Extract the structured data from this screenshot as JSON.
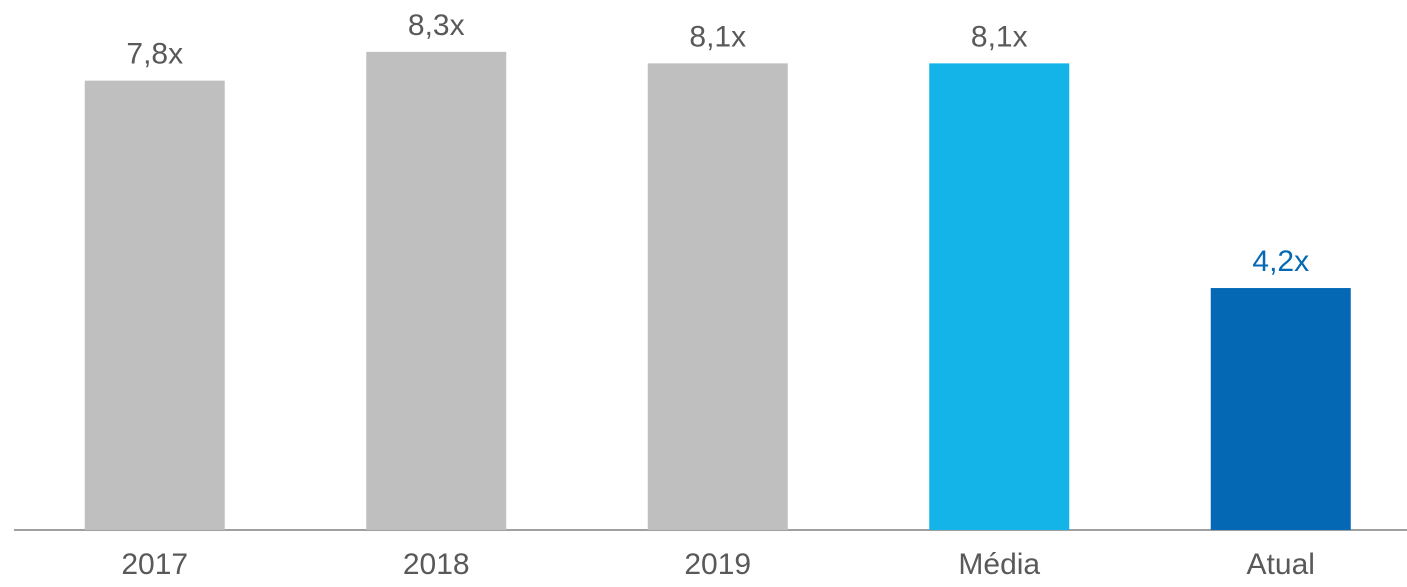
{
  "chart_data": {
    "type": "bar",
    "categories": [
      "2017",
      "2018",
      "2019",
      "Média",
      "Atual"
    ],
    "values": [
      7.8,
      8.3,
      8.1,
      8.1,
      4.2
    ],
    "value_labels": [
      "7,8x",
      "8,3x",
      "8,1x",
      "8,1x",
      "4,2x"
    ],
    "colors": [
      "#bfbfbf",
      "#bfbfbf",
      "#bfbfbf",
      "#14b4e9",
      "#0468b4"
    ],
    "value_label_colors": [
      "#595959",
      "#595959",
      "#595959",
      "#595959",
      "#0468b4"
    ],
    "ylim": [
      0,
      9.2
    ]
  }
}
